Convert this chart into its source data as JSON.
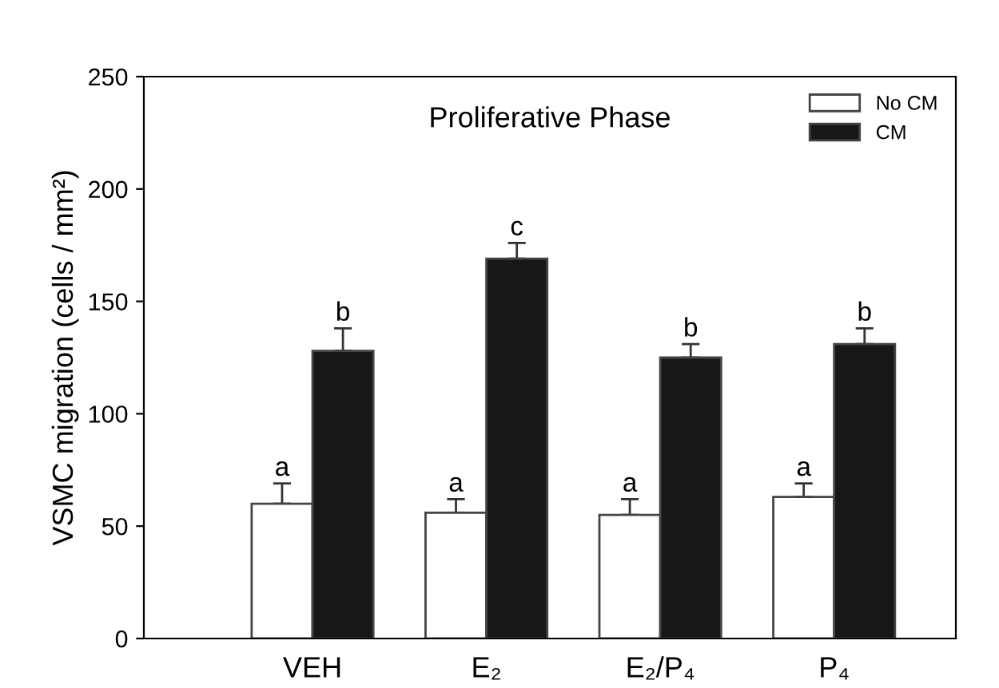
{
  "chart_data": {
    "type": "bar",
    "title": "Proliferative Phase",
    "ylabel": "VSMC migration (cells / mm²)",
    "categories": [
      "VEH",
      "E₂",
      "E₂/P₄",
      "P₄"
    ],
    "series": [
      {
        "name": "No CM",
        "color": "#ffffff",
        "values": [
          60,
          56,
          55,
          63
        ],
        "errors": [
          9,
          6,
          7,
          6
        ]
      },
      {
        "name": "CM",
        "color": "#171717",
        "values": [
          128,
          169,
          125,
          131
        ],
        "errors": [
          10,
          7,
          6,
          7
        ]
      }
    ],
    "annotations": [
      "a",
      "b",
      "a",
      "c",
      "a",
      "b",
      "a",
      "b"
    ],
    "ylim": [
      0,
      250
    ],
    "yticks": [
      0,
      50,
      100,
      150,
      200,
      250
    ],
    "grid": false,
    "legend": "top right"
  }
}
